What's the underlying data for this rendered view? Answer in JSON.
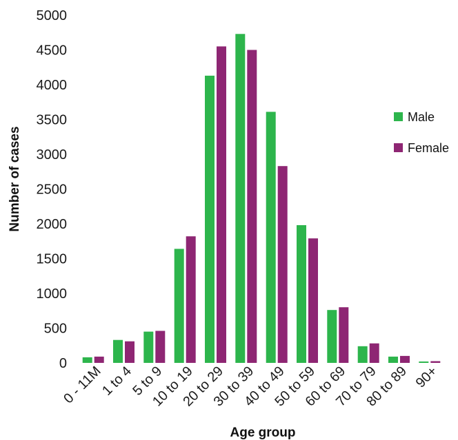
{
  "chart_data": {
    "type": "bar",
    "title": "",
    "xlabel": "Age group",
    "ylabel": "Number of cases",
    "ylim": [
      0,
      5000
    ],
    "yticks": [
      0,
      500,
      1000,
      1500,
      2000,
      2500,
      3000,
      3500,
      4000,
      4500,
      5000
    ],
    "grid": false,
    "legend_position": "right",
    "categories": [
      "0 - 11M",
      "1 to 4",
      "5 to 9",
      "10 to 19",
      "20 to 29",
      "30 to 39",
      "40 to 49",
      "50 to 59",
      "60 to 69",
      "70 to 79",
      "80 to 89",
      "90+"
    ],
    "series": [
      {
        "name": "Male",
        "color": "#2db54c",
        "values": [
          80,
          330,
          450,
          1640,
          4130,
          4730,
          3610,
          1980,
          760,
          240,
          90,
          20
        ]
      },
      {
        "name": "Female",
        "color": "#8e2673",
        "values": [
          90,
          310,
          460,
          1820,
          4550,
          4500,
          2830,
          1790,
          800,
          280,
          100,
          25
        ]
      }
    ]
  }
}
